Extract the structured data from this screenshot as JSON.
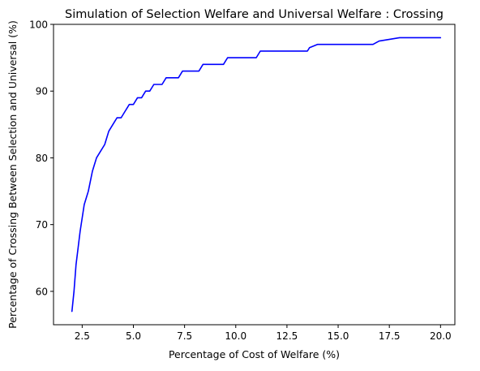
{
  "chart_data": {
    "type": "line",
    "title": "Simulation of Selection Welfare and Universal Welfare : Crossing",
    "xlabel": "Percentage of Cost of Welfare (%)",
    "ylabel": "Percentage of Crossing Between Selection and Universal (%)",
    "xlim": [
      1.1,
      20.7
    ],
    "ylim": [
      55,
      100
    ],
    "xticks": [
      2.5,
      5.0,
      7.5,
      10.0,
      12.5,
      15.0,
      17.5,
      20.0
    ],
    "xtick_labels": [
      "2.5",
      "5.0",
      "7.5",
      "10.0",
      "12.5",
      "15.0",
      "17.5",
      "20.0"
    ],
    "yticks": [
      60,
      70,
      80,
      90,
      100
    ],
    "ytick_labels": [
      "60",
      "70",
      "80",
      "90",
      "100"
    ],
    "grid": false,
    "legend": false,
    "series": [
      {
        "color": "#0000ff",
        "x": [
          2.0,
          2.1,
          2.2,
          2.3,
          2.4,
          2.5,
          2.6,
          2.7,
          2.8,
          2.9,
          3.0,
          3.1,
          3.2,
          3.3,
          3.4,
          3.5,
          3.6,
          3.7,
          3.8,
          3.9,
          4.0,
          4.1,
          4.2,
          4.3,
          4.4,
          4.5,
          4.6,
          4.7,
          4.8,
          4.9,
          5.0,
          5.1,
          5.2,
          5.3,
          5.4,
          5.5,
          5.6,
          5.7,
          5.8,
          5.9,
          6.0,
          6.1,
          6.2,
          6.3,
          6.4,
          6.5,
          6.6,
          6.8,
          7.0,
          7.1,
          7.2,
          7.3,
          7.4,
          7.6,
          7.8,
          8.0,
          8.2,
          8.3,
          8.4,
          8.6,
          8.8,
          9.0,
          9.2,
          9.4,
          9.5,
          9.6,
          9.8,
          10.0,
          10.5,
          11.0,
          11.1,
          11.2,
          12.0,
          13.0,
          13.5,
          13.6,
          14.0,
          15.0,
          16.0,
          16.6,
          16.7,
          17.0,
          18.0,
          19.0,
          20.0
        ],
        "y": [
          57,
          60,
          64,
          66.5,
          69,
          71,
          73,
          74,
          75,
          76.5,
          78,
          79,
          80,
          80.5,
          81,
          81.5,
          82,
          83,
          84,
          84.5,
          85,
          85.5,
          86,
          86,
          86,
          86.5,
          87,
          87.5,
          88,
          88,
          88,
          88.5,
          89,
          89,
          89,
          89.5,
          90,
          90,
          90,
          90.5,
          91,
          91,
          91,
          91,
          91,
          91.5,
          92,
          92,
          92,
          92,
          92,
          92.5,
          93,
          93,
          93,
          93,
          93,
          93.5,
          94,
          94,
          94,
          94,
          94,
          94,
          94.5,
          95,
          95,
          95,
          95,
          95,
          95.5,
          96,
          96,
          96,
          96,
          96.5,
          97,
          97,
          97,
          97,
          97,
          97.5,
          98,
          98,
          98
        ]
      }
    ]
  }
}
